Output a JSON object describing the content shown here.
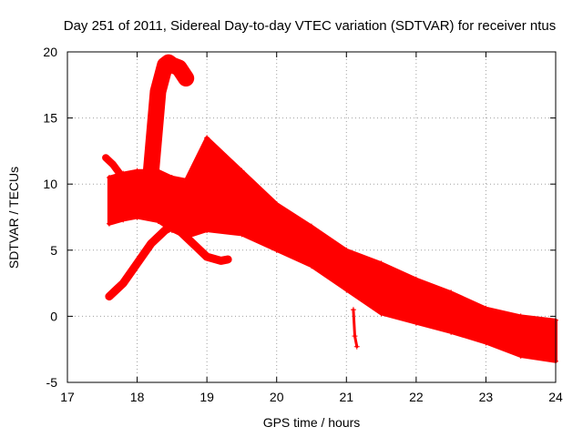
{
  "chart_data": {
    "type": "scatter",
    "title": "Day 251 of 2011, Sidereal Day-to-day VTEC variation (SDTVAR) for receiver ntus",
    "xlabel": "GPS time / hours",
    "ylabel": "SDTVAR / TECUs",
    "xlim": [
      17,
      24
    ],
    "ylim": [
      -5,
      20
    ],
    "xticks": [
      "17",
      "18",
      "19",
      "20",
      "21",
      "22",
      "23",
      "24"
    ],
    "yticks": [
      "-5",
      "0",
      "5",
      "10",
      "15",
      "20"
    ],
    "grid": true,
    "marker": "+",
    "color": "#ff0000",
    "series": [
      {
        "name": "band-upper",
        "x": [
          17.6,
          17.8,
          18.0,
          18.3,
          18.5,
          18.7,
          19.0,
          19.5,
          20.0,
          20.5,
          21.0,
          21.5,
          22.0,
          22.5,
          23.0,
          23.5,
          24.0
        ],
        "y": [
          10.5,
          10.8,
          11.0,
          11.0,
          10.5,
          10.3,
          13.5,
          11.0,
          8.5,
          6.8,
          5.0,
          4.0,
          2.8,
          1.8,
          0.6,
          0.0,
          -0.3
        ]
      },
      {
        "name": "band-lower",
        "x": [
          17.6,
          17.8,
          18.0,
          18.3,
          18.5,
          18.7,
          19.0,
          19.5,
          20.0,
          20.5,
          21.0,
          21.5,
          22.0,
          22.5,
          23.0,
          23.5,
          24.0
        ],
        "y": [
          7.0,
          7.3,
          7.5,
          7.2,
          6.5,
          6.0,
          6.5,
          6.2,
          5.0,
          3.8,
          2.0,
          0.2,
          -0.5,
          -1.2,
          -2.0,
          -3.0,
          -3.4
        ]
      },
      {
        "name": "peak",
        "x": [
          18.2,
          18.3,
          18.4,
          18.45,
          18.5,
          18.6,
          18.7
        ],
        "y": [
          11,
          17,
          19,
          19.2,
          19.0,
          18.8,
          18.0
        ]
      },
      {
        "name": "rising-track",
        "x": [
          17.6,
          17.8,
          18.0,
          18.2,
          18.4,
          18.5,
          18.6,
          18.8,
          19.0,
          19.2,
          19.3
        ],
        "y": [
          1.5,
          2.5,
          4.0,
          5.5,
          6.5,
          6.8,
          6.5,
          5.5,
          4.5,
          4.2,
          4.3
        ]
      },
      {
        "name": "early-arc",
        "x": [
          17.55,
          17.65,
          17.75,
          17.85
        ],
        "y": [
          12.0,
          11.5,
          10.8,
          10.2
        ]
      },
      {
        "name": "spike",
        "x": [
          21.1,
          21.12,
          21.15
        ],
        "y": [
          0.5,
          -1.5,
          -2.3
        ]
      }
    ]
  }
}
